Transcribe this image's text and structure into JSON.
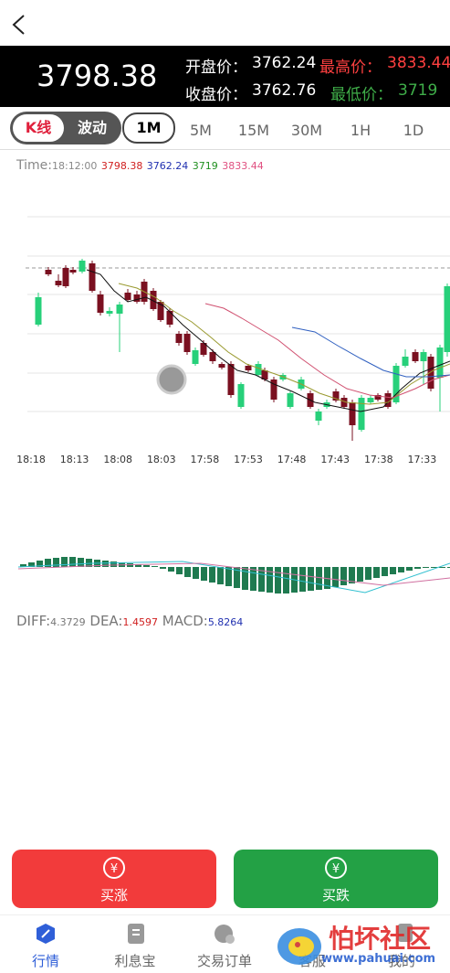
{
  "quote": {
    "price": "3798.38",
    "open_label": "开盘价：",
    "open": "3762.24",
    "high_label": "最高价：",
    "high": "3833.44",
    "close_label": "收盘价：",
    "close": "3762.76",
    "low_label": "最低价：",
    "low": "3719"
  },
  "tabs": {
    "mode": [
      "K线",
      "波动"
    ],
    "periods": [
      "1M",
      "5M",
      "15M",
      "30M",
      "1H",
      "1D"
    ]
  },
  "info": {
    "time_label": "Time:",
    "time": "18:12:00",
    "values": [
      "3798.38",
      "3762.24",
      "3719",
      "3833.44"
    ]
  },
  "time_axis": [
    "18:18",
    "18:13",
    "18:08",
    "18:03",
    "17:58",
    "17:53",
    "17:48",
    "17:43",
    "17:38",
    "17:33"
  ],
  "macd": {
    "diff_label": "DIFF:",
    "diff": "4.3729",
    "dea_label": "DEA:",
    "dea": "1.4597",
    "macd_label": "MACD:",
    "macd": "5.8264"
  },
  "actions": [
    "买涨",
    "买跌"
  ],
  "nav": [
    "行情",
    "利息宝",
    "交易订单",
    "客服",
    "我的"
  ],
  "watermark": {
    "title": "怕坏社区",
    "url": "www.pahuai.com"
  }
}
